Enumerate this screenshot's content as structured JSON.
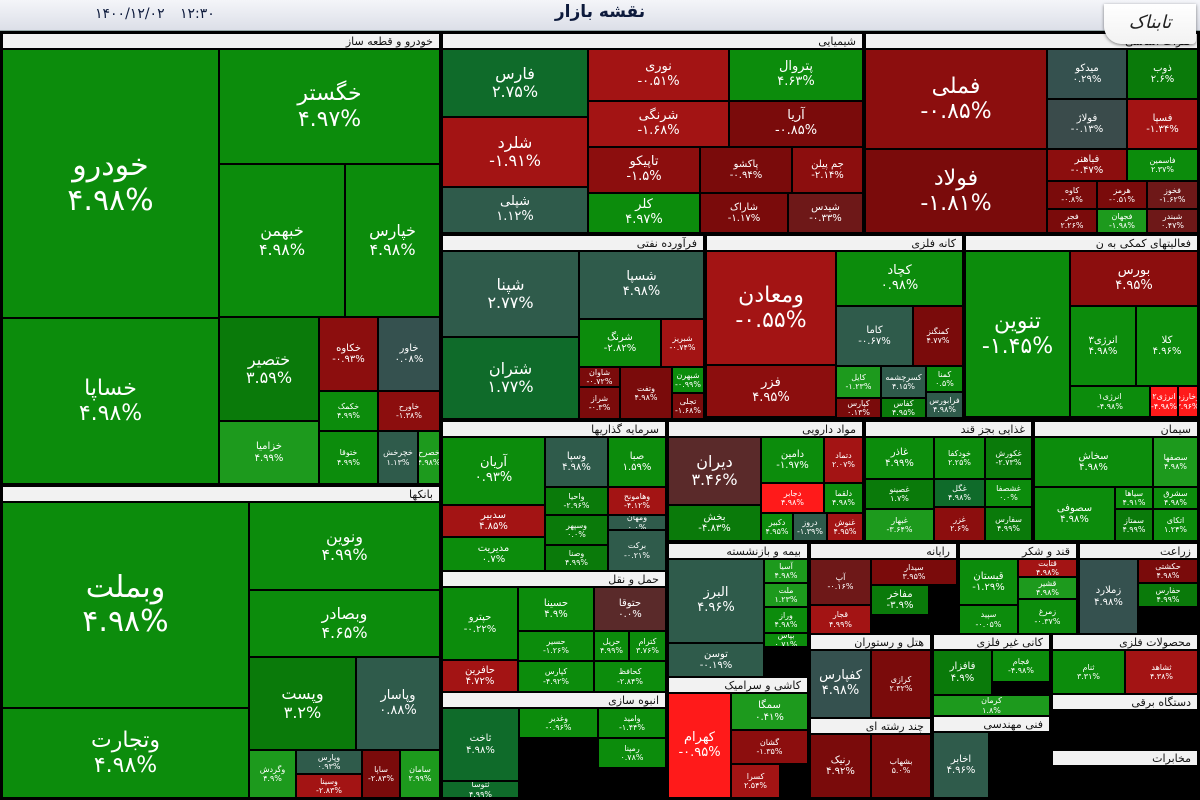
{
  "header": {
    "title": "نقشه بازار",
    "time": "۱۲:۳۰",
    "date": "۱۴۰۰/۱۲/۰۲",
    "logo": "تابناک"
  },
  "sectors": {
    "khodro": "خودرو و قطعه ساز",
    "shimiyaei": "شیمیایی",
    "felezat": "فلزات اساسی",
    "faravarde": "فرآورده نفتی",
    "kane": "کانه فلزی",
    "faaliat": "فعالیتهای کمکی به ن",
    "banks": "بانکها",
    "sarmaye": "سرمایه گذاریها",
    "daruei": "مواد دارویی",
    "ghazaei": "غذایی بجز قند",
    "siman": "سیمان",
    "bime": "بیمه و بازنشسته",
    "rayane": "رایانه",
    "ghand": "قند و شکر",
    "zeraat": "زراعت",
    "haml": "حمل و نقل",
    "kashi": "کاشی و سرامیک",
    "hotel": "هتل و رستوران",
    "kanigheyr": "کانی غیر فلزی",
    "mahsulat": "محصولات فلزی",
    "anbooh": "انبوه سازی",
    "chand": "چند رشته ای",
    "fani": "فنی مهندسی",
    "dastgah": "دستگاه برقی",
    "mokhaberat": "مخابرات"
  },
  "tiles": [
    {
      "name": "خودرو",
      "pct": "۴.۹۸%"
    },
    {
      "name": "خساپا",
      "pct": "۴.۹۸%"
    },
    {
      "name": "خگستر",
      "pct": "۴.۹۷%"
    },
    {
      "name": "خبهمن",
      "pct": "۴.۹۸%"
    },
    {
      "name": "خپارس",
      "pct": "۴.۹۸%"
    },
    {
      "name": "ختصیر",
      "pct": "۳.۵۹%"
    },
    {
      "name": "خکاوه",
      "pct": "-۰.۹۳%"
    },
    {
      "name": "خاور",
      "pct": "۰.۰۸%"
    },
    {
      "name": "خکمک",
      "pct": "۴.۹۹%"
    },
    {
      "name": "خاورح",
      "pct": "-۱.۳۸%"
    },
    {
      "name": "خزامیا",
      "pct": "۴.۹۹%"
    },
    {
      "name": "ختوقا",
      "pct": "۴.۹۹%"
    },
    {
      "name": "خچرخش",
      "pct": "۱.۱۳%"
    },
    {
      "name": "خصرح",
      "pct": "۴.۹۸%"
    },
    {
      "name": "وبملت",
      "pct": "۴.۹۸%"
    },
    {
      "name": "وتجارت",
      "pct": "۴.۹۸%"
    },
    {
      "name": "ونوین",
      "pct": "۴.۹۹%"
    },
    {
      "name": "وبصادر",
      "pct": "۴.۶۵%"
    },
    {
      "name": "وپست",
      "pct": "۳.۲%"
    },
    {
      "name": "وپاسار",
      "pct": "۰.۸۸%"
    },
    {
      "name": "وگردش",
      "pct": "۴.۹%"
    },
    {
      "name": "وپارس",
      "pct": "۰.۹۳%"
    },
    {
      "name": "وسینا",
      "pct": "-۲.۸۳%"
    },
    {
      "name": "ساپا",
      "pct": "-۲.۸۳%"
    },
    {
      "name": "سامان",
      "pct": "۲.۹۹%"
    },
    {
      "name": "فارس",
      "pct": "۲.۷۵%"
    },
    {
      "name": "شلرد",
      "pct": "-۱.۹۱%"
    },
    {
      "name": "شپلی",
      "pct": "۱.۱۲%"
    },
    {
      "name": "نوری",
      "pct": "-۰.۵۱%"
    },
    {
      "name": "شرنگی",
      "pct": "-۱.۶۸%"
    },
    {
      "name": "تاپیکو",
      "pct": "-۱.۵%"
    },
    {
      "name": "پتروال",
      "pct": "۴.۶۳%"
    },
    {
      "name": "آریا",
      "pct": "-۰.۸۵%"
    },
    {
      "name": "پاکشو",
      "pct": "-۰.۹۴%"
    },
    {
      "name": "جم پیلن",
      "pct": "-۲.۱۴%"
    },
    {
      "name": "کلر",
      "pct": "۴.۹۷%"
    },
    {
      "name": "شاراک",
      "pct": "-۱.۱۷%"
    },
    {
      "name": "شیدس",
      "pct": "-۰.۳۳%"
    },
    {
      "name": "فملی",
      "pct": "-۰.۸۵%"
    },
    {
      "name": "فولاد",
      "pct": "-۱.۸۱%"
    },
    {
      "name": "میدکو",
      "pct": "۰.۲۹%"
    },
    {
      "name": "ذوب",
      "pct": "۲.۶%"
    },
    {
      "name": "فولاژ",
      "pct": "-۰.۱۳%"
    },
    {
      "name": "فسپا",
      "pct": "-۱.۳۴%"
    },
    {
      "name": "فباهنر",
      "pct": "-۰.۴۷%"
    },
    {
      "name": "فاسمین",
      "pct": "۲.۳۷%"
    },
    {
      "name": "کاوه",
      "pct": "-۰.۸%"
    },
    {
      "name": "هرمز",
      "pct": "-۰.۵۱%"
    },
    {
      "name": "فخوز",
      "pct": "-۱.۶۲%"
    },
    {
      "name": "فجر",
      "pct": "۲.۲۶%"
    },
    {
      "name": "فجهان",
      "pct": "-۱.۹۸%"
    },
    {
      "name": "شبندر",
      "pct": "۰.۴۷%"
    },
    {
      "name": "شپنا",
      "pct": "۲.۷۷%"
    },
    {
      "name": "شتران",
      "pct": "۱.۷۷%"
    },
    {
      "name": "شسپا",
      "pct": "۴.۹۸%"
    },
    {
      "name": "شرنگ",
      "pct": "-۲.۸۲%"
    },
    {
      "name": "شبریز",
      "pct": "-۰.۷۴%"
    },
    {
      "name": "شاوان",
      "pct": "-۰.۷۲%"
    },
    {
      "name": "شراز",
      "pct": "-۰.۳%"
    },
    {
      "name": "وتفت",
      "pct": "۴.۹۸%"
    },
    {
      "name": "شبهرن",
      "pct": "-۰.۹۹%"
    },
    {
      "name": "تجلی",
      "pct": "-۱.۶۸%"
    },
    {
      "name": "ومعادن",
      "pct": "-۰.۵۵%"
    },
    {
      "name": "فزر",
      "pct": "۴.۹۵%"
    },
    {
      "name": "کچاد",
      "pct": "۰.۹۸%"
    },
    {
      "name": "کاما",
      "pct": "-۰.۶۷%"
    },
    {
      "name": "کمنگنز",
      "pct": "۴.۷۷%"
    },
    {
      "name": "کایل",
      "pct": "-۱.۲۳%"
    },
    {
      "name": "کپارس",
      "pct": "۰.۱۳%"
    },
    {
      "name": "کسرچشمه",
      "pct": "۴.۱۵%"
    },
    {
      "name": "کفاس",
      "pct": "۴.۹۵%"
    },
    {
      "name": "کمنا",
      "pct": "۰.۵%"
    },
    {
      "name": "فرابورس",
      "pct": "۴.۹۸%"
    },
    {
      "name": "تنوین",
      "pct": "-۱.۴۵%"
    },
    {
      "name": "بورس",
      "pct": "۴.۹۵%"
    },
    {
      "name": "انرژی۳",
      "pct": "۴.۹۸%"
    },
    {
      "name": "کلا",
      "pct": "۴.۹۶%"
    },
    {
      "name": "انرژی۱",
      "pct": "-۴.۹۸%"
    },
    {
      "name": "انرژی۲",
      "pct": "-۴.۹۸%"
    },
    {
      "name": "وخارزم",
      "pct": "۳.۹۶%"
    },
    {
      "name": "آریان",
      "pct": "۰.۹۳%"
    },
    {
      "name": "وسپا",
      "pct": "۴.۹۸%"
    },
    {
      "name": "صبا",
      "pct": "۱.۵۹%"
    },
    {
      "name": "واحیا",
      "pct": "-۲.۹۶%"
    },
    {
      "name": "وهامونح",
      "pct": "-۴.۱۲%"
    },
    {
      "name": "سدبیر",
      "pct": "۴.۸۵%"
    },
    {
      "name": "مدیریت",
      "pct": "۰.۷%"
    },
    {
      "name": "وسپهر",
      "pct": "۰.۰%"
    },
    {
      "name": "ومهان",
      "pct": "۰.۰%"
    },
    {
      "name": "وصنا",
      "pct": "۴.۹۹%"
    },
    {
      "name": "برکت",
      "pct": "-۰.۲۱%"
    },
    {
      "name": "دیران",
      "pct": "۳.۴۶%"
    },
    {
      "name": "دامین",
      "pct": "-۱.۹۷%"
    },
    {
      "name": "دتماد",
      "pct": "۲.۰۷%"
    },
    {
      "name": "بخش",
      "pct": "-۴.۸۳%"
    },
    {
      "name": "دجابر",
      "pct": "۴.۹۸%"
    },
    {
      "name": "دلقما",
      "pct": "۴.۹۸%"
    },
    {
      "name": "دکبیر",
      "pct": "۴.۹۵%"
    },
    {
      "name": "دروز",
      "pct": "-۱.۳۹%"
    },
    {
      "name": "غنوش",
      "pct": "۴.۹۵%"
    },
    {
      "name": "غاذر",
      "pct": "۴.۹۹%"
    },
    {
      "name": "خودکفا",
      "pct": "۲.۲۵%"
    },
    {
      "name": "غکورش",
      "pct": "-۲.۷۳%"
    },
    {
      "name": "غصینو",
      "pct": "۱.۷%"
    },
    {
      "name": "غگل",
      "pct": "۴.۹۸%"
    },
    {
      "name": "غبهار",
      "pct": "-۳.۶۴%"
    },
    {
      "name": "غزر",
      "pct": "۲.۶%"
    },
    {
      "name": "غشصفا",
      "pct": "۰.۰%"
    },
    {
      "name": "سفارس",
      "pct": "۴.۹۹%"
    },
    {
      "name": "سخاش",
      "pct": "۴.۹۸%"
    },
    {
      "name": "سصفها",
      "pct": "۴.۹۸%"
    },
    {
      "name": "سیاها",
      "pct": "۴.۹۱%"
    },
    {
      "name": "سصوفی",
      "pct": "۴.۹۸%"
    },
    {
      "name": "سشرق",
      "pct": "۴.۹۸%"
    },
    {
      "name": "سمتاز",
      "pct": "۴.۹۹%"
    },
    {
      "name": "اتکای",
      "pct": "۱.۲۴%"
    },
    {
      "name": "البرز",
      "pct": "۴.۹۶%"
    },
    {
      "name": "آسیا",
      "pct": "۴.۹۸%"
    },
    {
      "name": "ملت",
      "pct": "۱.۲۳%"
    },
    {
      "name": "وراز",
      "pct": "۴.۹۸%"
    },
    {
      "name": "بپاس",
      "pct": "۰.۷۱%"
    },
    {
      "name": "توسن",
      "pct": "-۰.۱۹%"
    },
    {
      "name": "آپ",
      "pct": "-۰.۱۶%"
    },
    {
      "name": "سیدار",
      "pct": "۳.۹۵%"
    },
    {
      "name": "مفاخر",
      "pct": "-۳.۹%"
    },
    {
      "name": "قجار",
      "pct": "۴.۹۹%"
    },
    {
      "name": "قبستان",
      "pct": "-۱.۲۹%"
    },
    {
      "name": "قتابت",
      "pct": "۴.۹۸%"
    },
    {
      "name": "قشیر",
      "pct": "۴.۹۸%"
    },
    {
      "name": "سپید",
      "pct": "-۰.۰۵%"
    },
    {
      "name": "زمرغ",
      "pct": "-۰.۳۷%"
    },
    {
      "name": "زملارد",
      "pct": "۴.۹۸%"
    },
    {
      "name": "حکشتی",
      "pct": "۴.۹۸%"
    },
    {
      "name": "حفارس",
      "pct": "۴.۹۹%"
    },
    {
      "name": "حپترو",
      "pct": "-۰.۲۲%"
    },
    {
      "name": "حسینا",
      "pct": "۴.۹%"
    },
    {
      "name": "حتوقا",
      "pct": "۰.۰%"
    },
    {
      "name": "حسیر",
      "pct": "-۱.۲۶%"
    },
    {
      "name": "حریل",
      "pct": "۴.۹۹%"
    },
    {
      "name": "حافرین",
      "pct": "۴.۷۲%"
    },
    {
      "name": "کپارس",
      "pct": "-۴.۹۲%"
    },
    {
      "name": "کترام",
      "pct": "۳.۷۶%"
    },
    {
      "name": "کحافظ",
      "pct": "-۲.۸۴%"
    },
    {
      "name": "کهرام",
      "pct": "-۰.۹۵%"
    },
    {
      "name": "سمگا",
      "pct": "۰.۴۱%"
    },
    {
      "name": "گشان",
      "pct": "-۱.۳۵%"
    },
    {
      "name": "کسرا",
      "pct": "۲.۵۴%"
    },
    {
      "name": "کفپارس",
      "pct": "۴.۹۸%"
    },
    {
      "name": "کرازی",
      "pct": "۲.۳۲%"
    },
    {
      "name": "فافزار",
      "pct": "۴.۹%"
    },
    {
      "name": "فجام",
      "pct": "-۴.۹۸%"
    },
    {
      "name": "کرمان",
      "pct": "۱.۸%"
    },
    {
      "name": "ثنام",
      "pct": "۳.۳۱%"
    },
    {
      "name": "ثشاهد",
      "pct": "۴.۳۸%"
    },
    {
      "name": "ثاخت",
      "pct": "۴.۹۸%"
    },
    {
      "name": "ثتوسا",
      "pct": "۴.۹۹%"
    },
    {
      "name": "وغدیر",
      "pct": "-۰.۹۶%"
    },
    {
      "name": "وامید",
      "pct": "-۱.۴۴%"
    },
    {
      "name": "رمپنا",
      "pct": "۰.۷۸%"
    },
    {
      "name": "رنیک",
      "pct": "۴.۹۲%"
    },
    {
      "name": "بشهاب",
      "pct": "۵.۰%"
    },
    {
      "name": "اخابر",
      "pct": "۴.۹۶%"
    }
  ]
}
